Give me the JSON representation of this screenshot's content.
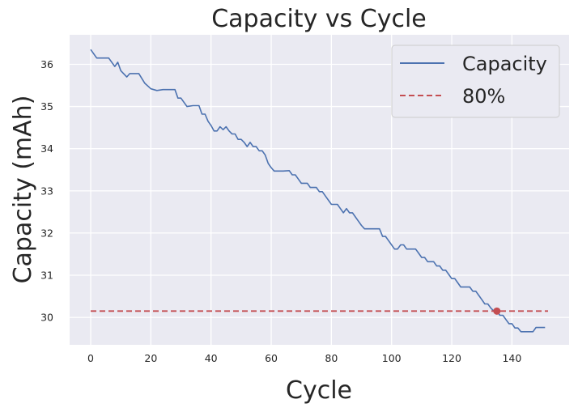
{
  "chart_data": {
    "type": "line",
    "title": "Capacity vs Cycle",
    "xlabel": "Cycle",
    "ylabel": "Capacity (mAh)",
    "xlim": [
      -7,
      159
    ],
    "ylim": [
      29.35,
      36.7
    ],
    "xticks": [
      0,
      20,
      40,
      60,
      80,
      100,
      120,
      140
    ],
    "yticks": [
      30,
      31,
      32,
      33,
      34,
      35,
      36
    ],
    "grid": true,
    "legend_position": "top-right",
    "colors": {
      "background": "#EAEAF2",
      "grid": "#FFFFFF",
      "capacity": "#4C72B0",
      "threshold": "#C44E52",
      "text": "#262626"
    },
    "series": [
      {
        "name": "Capacity",
        "style": "solid",
        "color": "#4C72B0",
        "x": [
          0,
          2,
          4,
          6,
          8,
          9,
          10,
          12,
          13,
          14,
          16,
          18,
          20,
          22,
          24,
          26,
          28,
          29,
          30,
          32,
          34,
          36,
          37,
          38,
          39,
          40,
          41,
          42,
          43,
          44,
          45,
          46,
          47,
          48,
          49,
          50,
          51,
          52,
          53,
          54,
          55,
          56,
          57,
          58,
          59,
          60,
          61,
          62,
          64,
          66,
          67,
          68,
          69,
          70,
          71,
          72,
          73,
          74,
          75,
          76,
          77,
          78,
          80,
          82,
          83,
          84,
          85,
          86,
          87,
          88,
          89,
          90,
          91,
          92,
          94,
          96,
          97,
          98,
          99,
          100,
          101,
          102,
          103,
          104,
          105,
          106,
          107,
          108,
          109,
          110,
          111,
          112,
          113,
          114,
          115,
          116,
          117,
          118,
          119,
          120,
          121,
          122,
          123,
          124,
          125,
          126,
          127,
          128,
          129,
          130,
          131,
          132,
          133,
          134,
          135,
          136,
          137,
          138,
          139,
          140,
          141,
          142,
          143,
          144,
          145,
          146,
          147,
          148,
          149,
          150,
          151
        ],
        "y": [
          36.35,
          36.15,
          36.15,
          36.15,
          35.95,
          36.05,
          35.85,
          35.7,
          35.78,
          35.78,
          35.78,
          35.55,
          35.42,
          35.38,
          35.4,
          35.4,
          35.4,
          35.2,
          35.2,
          35.0,
          35.02,
          35.02,
          34.82,
          34.82,
          34.65,
          34.55,
          34.42,
          34.42,
          34.52,
          34.45,
          34.52,
          34.42,
          34.35,
          34.35,
          34.22,
          34.22,
          34.15,
          34.05,
          34.15,
          34.05,
          34.05,
          33.95,
          33.95,
          33.85,
          33.65,
          33.55,
          33.47,
          33.47,
          33.47,
          33.48,
          33.38,
          33.38,
          33.28,
          33.18,
          33.18,
          33.18,
          33.08,
          33.08,
          33.08,
          32.98,
          32.98,
          32.88,
          32.68,
          32.68,
          32.58,
          32.48,
          32.58,
          32.48,
          32.48,
          32.38,
          32.28,
          32.18,
          32.1,
          32.1,
          32.1,
          32.1,
          31.92,
          31.92,
          31.82,
          31.72,
          31.62,
          31.62,
          31.72,
          31.72,
          31.62,
          31.62,
          31.62,
          31.62,
          31.52,
          31.42,
          31.42,
          31.32,
          31.32,
          31.32,
          31.22,
          31.22,
          31.12,
          31.12,
          31.02,
          30.92,
          30.92,
          30.82,
          30.72,
          30.72,
          30.72,
          30.72,
          30.62,
          30.62,
          30.52,
          30.42,
          30.32,
          30.32,
          30.22,
          30.15,
          30.15,
          30.05,
          30.05,
          29.95,
          29.85,
          29.85,
          29.75,
          29.75,
          29.66,
          29.66,
          29.66,
          29.66,
          29.66,
          29.76,
          29.76,
          29.76,
          29.76
        ]
      },
      {
        "name": "80%",
        "style": "dashed",
        "color": "#C44E52",
        "x": [
          0,
          152
        ],
        "y": [
          30.15,
          30.15
        ]
      }
    ],
    "marker": {
      "x": 135,
      "y": 30.15,
      "color": "#C44E52"
    }
  }
}
